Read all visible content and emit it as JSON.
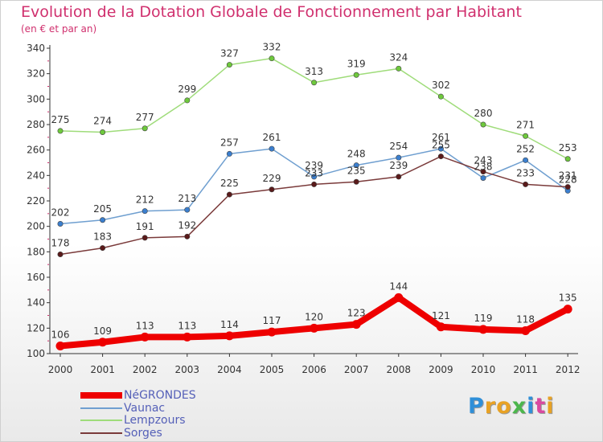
{
  "title": "Evolution de la Dotation Globale de Fonctionnement par Habitant",
  "subtitle": "(en € et par an)",
  "colors": {
    "title": "#d0306e",
    "legend_text": "#5560b8",
    "axis": "#333333"
  },
  "logo": {
    "text": "Proxiti",
    "letters": [
      "P",
      "r",
      "o",
      "x",
      "i",
      "t",
      "i"
    ],
    "colors": [
      "#2f8fd8",
      "#e8a224",
      "#e8a224",
      "#4cb64c",
      "#2f8fd8",
      "#d94aa0",
      "#e8a224"
    ]
  },
  "chart_data": {
    "type": "line",
    "title": "Evolution de la Dotation Globale de Fonctionnement par Habitant",
    "subtitle": "(en € et par an)",
    "xlabel": "",
    "ylabel": "",
    "x": [
      "2000",
      "2001",
      "2002",
      "2003",
      "2004",
      "2005",
      "2006",
      "2007",
      "2008",
      "2009",
      "2010",
      "2011",
      "2012"
    ],
    "ylim": [
      100,
      340
    ],
    "yticks": [
      100,
      120,
      140,
      160,
      180,
      200,
      220,
      240,
      260,
      280,
      300,
      320,
      340
    ],
    "grid": false,
    "legend_position": "bottom-left",
    "series": [
      {
        "name": "NéGRONDES",
        "color": "#ee0000",
        "point_color": "#ee0000",
        "thick": true,
        "values": [
          106,
          109,
          113,
          113,
          114,
          117,
          120,
          123,
          144,
          121,
          119,
          118,
          135
        ]
      },
      {
        "name": "Vaunac",
        "color": "#6f9fd0",
        "point_color": "#3b7fcf",
        "thick": false,
        "values": [
          202,
          205,
          212,
          213,
          257,
          261,
          239,
          248,
          254,
          261,
          238,
          252,
          228
        ]
      },
      {
        "name": "Lempzours",
        "color": "#9fdc7a",
        "point_color": "#6ec93c",
        "thick": false,
        "values": [
          275,
          274,
          277,
          299,
          327,
          332,
          313,
          319,
          324,
          302,
          280,
          271,
          253
        ]
      },
      {
        "name": "Sorges",
        "color": "#7a3a3a",
        "point_color": "#5a1a1a",
        "thick": false,
        "values": [
          178,
          183,
          191,
          192,
          225,
          229,
          233,
          235,
          239,
          255,
          243,
          233,
          231
        ]
      }
    ]
  }
}
